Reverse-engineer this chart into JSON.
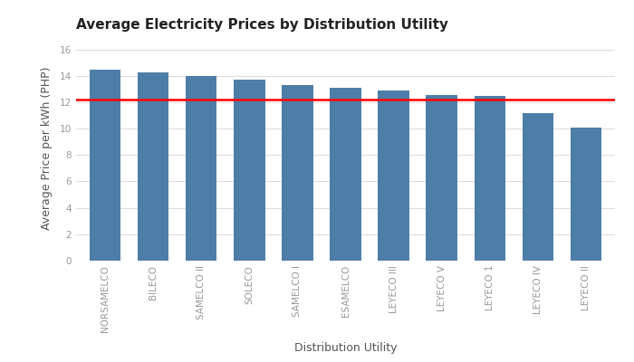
{
  "title": "Average Electricity Prices by Distribution Utility",
  "xlabel": "Distribution Utility",
  "ylabel": "Average Price per kWh (PHP)",
  "categories": [
    "NORSAMELCO",
    "BILECO",
    "SAMELCO II",
    "SOLECO",
    "SAMELCO I",
    "ESAMELCO",
    "LEYECO III",
    "LEYECO V",
    "LEYECO 1",
    "LEYECO IV",
    "LEYECO II"
  ],
  "values": [
    14.45,
    14.25,
    13.95,
    13.7,
    13.3,
    13.1,
    12.9,
    12.55,
    12.5,
    11.2,
    10.1
  ],
  "bar_color": "#4d7ea8",
  "reference_line": 12.2,
  "reference_line_color": "#ff0000",
  "ylim": [
    0,
    17
  ],
  "yticks": [
    0,
    2,
    4,
    6,
    8,
    10,
    12,
    14,
    16
  ],
  "background_color": "#ffffff",
  "grid_color": "#dddddd",
  "title_fontsize": 11,
  "axis_label_fontsize": 9,
  "tick_fontsize": 7.5
}
